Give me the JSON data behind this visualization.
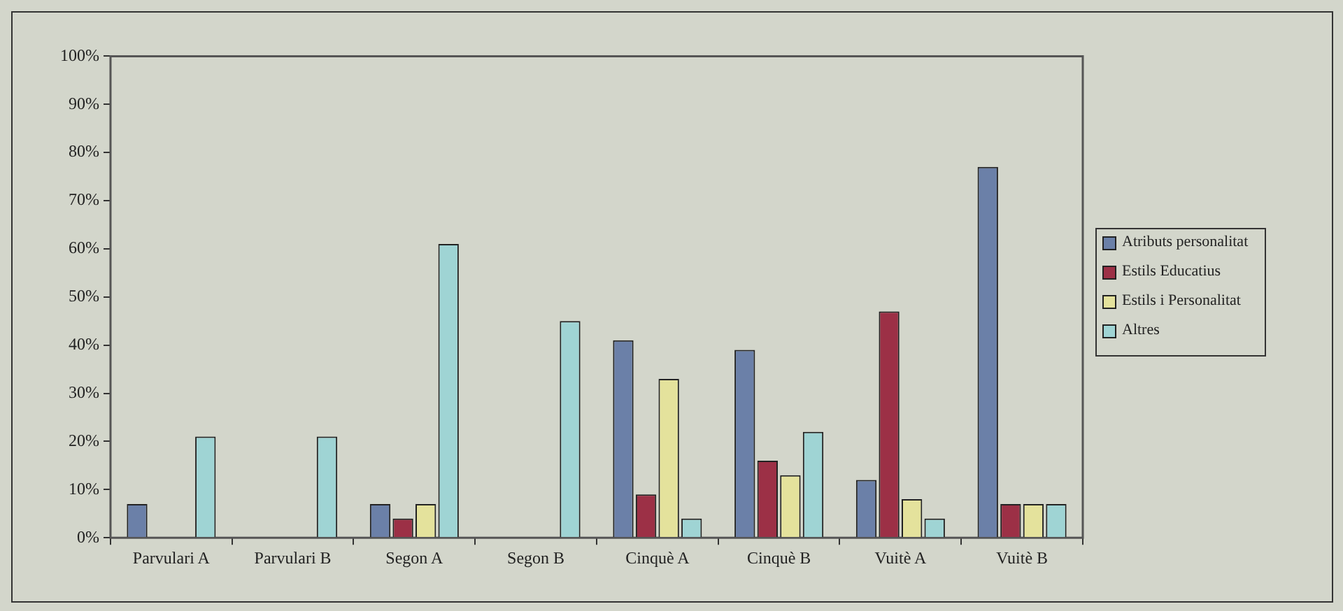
{
  "chart_data": {
    "type": "bar",
    "categories": [
      "Parvulari A",
      "Parvulari B",
      "Segon A",
      "Segon B",
      "Cinquè A",
      "Cinquè B",
      "Vuitè A",
      "Vuitè B"
    ],
    "series": [
      {
        "name": "Atributs personalitat",
        "color": "#6b80a8",
        "values": [
          7,
          0,
          7,
          0,
          41,
          39,
          12,
          77
        ]
      },
      {
        "name": "Estils Educatius",
        "color": "#9c3046",
        "values": [
          0,
          0,
          4,
          0,
          9,
          16,
          47,
          7
        ]
      },
      {
        "name": "Estils i Personalitat",
        "color": "#e4e29c",
        "values": [
          0,
          0,
          7,
          0,
          33,
          13,
          8,
          7
        ]
      },
      {
        "name": "Altres",
        "color": "#9fd4d4",
        "values": [
          21,
          21,
          61,
          45,
          4,
          22,
          4,
          7
        ]
      }
    ],
    "ylim": [
      0,
      100
    ],
    "yticks": [
      {
        "value": 0,
        "label": "0%"
      },
      {
        "value": 10,
        "label": "10%"
      },
      {
        "value": 20,
        "label": "20%"
      },
      {
        "value": 30,
        "label": "30%"
      },
      {
        "value": 40,
        "label": "40%"
      },
      {
        "value": 50,
        "label": "50%"
      },
      {
        "value": 60,
        "label": "60%"
      },
      {
        "value": 70,
        "label": "70%"
      },
      {
        "value": 80,
        "label": "80%"
      },
      {
        "value": 90,
        "label": "90%"
      },
      {
        "value": 100,
        "label": "100%"
      }
    ],
    "grid": false,
    "legend": "right"
  }
}
